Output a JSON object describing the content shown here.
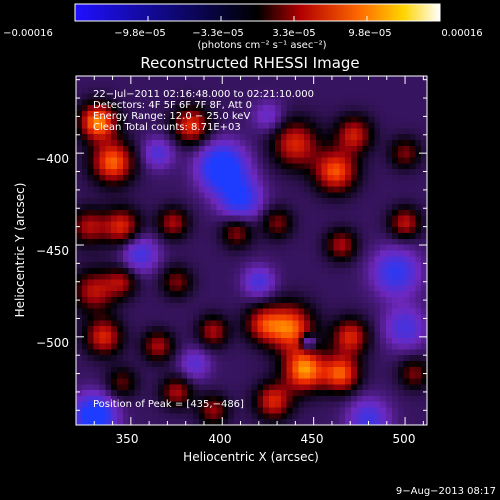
{
  "chart_data": {
    "type": "heatmap",
    "title": "Reconstructed RHESSI Image",
    "xlabel": "Heliocentric X (arcsec)",
    "ylabel": "Heliocentric Y (arcsec)",
    "xlim": [
      320,
      512
    ],
    "ylim": [
      -548,
      -358
    ],
    "xticks": [
      350,
      400,
      450,
      500
    ],
    "yticks": [
      -400,
      -450,
      -500
    ],
    "xtick_labels": [
      "350",
      "400",
      "450",
      "500"
    ],
    "ytick_labels": [
      "−400",
      "−450",
      "−500"
    ],
    "colorbar": {
      "range": [
        -0.00016,
        0.00016
      ],
      "tick_labels": [
        "−0.00016",
        "−9.8e−05",
        "−3.3e−05",
        "3.3e−05",
        "9.8e−05",
        "0.00016"
      ],
      "unit_label": "(photons cm⁻² s⁻¹ asec⁻²)"
    },
    "info_lines": [
      "22−Jul−2011 02:16:48.000 to 02:21:10.000",
      "Detectors: 4F 5F 6F 7F 8F, Att 0",
      "Energy Range: 12.0 − 25.0 keV",
      "Clean     Total counts: 8.71E+03"
    ],
    "peak_text": "Position of Peak = [435,−486]",
    "peak": [
      435,
      -486
    ],
    "footer": "9−Aug−2013 08:17",
    "blobs": [
      {
        "x": 332,
        "y": -383,
        "v": 1.0,
        "s": 7
      },
      {
        "x": 340,
        "y": -405,
        "v": 0.9,
        "s": 8
      },
      {
        "x": 327,
        "y": -440,
        "v": 0.55,
        "s": 7
      },
      {
        "x": 345,
        "y": -440,
        "v": 0.7,
        "s": 7
      },
      {
        "x": 383,
        "y": -385,
        "v": 0.75,
        "s": 7
      },
      {
        "x": 373,
        "y": -438,
        "v": 0.55,
        "s": 6
      },
      {
        "x": 408,
        "y": -443,
        "v": 0.5,
        "s": 6
      },
      {
        "x": 430,
        "y": -438,
        "v": 0.45,
        "s": 6
      },
      {
        "x": 440,
        "y": -395,
        "v": 0.7,
        "s": 9
      },
      {
        "x": 462,
        "y": -410,
        "v": 0.85,
        "s": 8
      },
      {
        "x": 472,
        "y": -390,
        "v": 0.65,
        "s": 7
      },
      {
        "x": 500,
        "y": -400,
        "v": 0.45,
        "s": 6
      },
      {
        "x": 500,
        "y": -438,
        "v": 0.6,
        "s": 6
      },
      {
        "x": 465,
        "y": -450,
        "v": 0.55,
        "s": 6
      },
      {
        "x": 330,
        "y": -475,
        "v": 0.6,
        "s": 8
      },
      {
        "x": 345,
        "y": -470,
        "v": 0.5,
        "s": 6
      },
      {
        "x": 375,
        "y": -470,
        "v": 0.45,
        "s": 6
      },
      {
        "x": 335,
        "y": -500,
        "v": 0.7,
        "s": 7
      },
      {
        "x": 365,
        "y": -505,
        "v": 0.55,
        "s": 6
      },
      {
        "x": 395,
        "y": -497,
        "v": 0.55,
        "s": 6
      },
      {
        "x": 422,
        "y": -493,
        "v": 0.6,
        "s": 7
      },
      {
        "x": 437,
        "y": -495,
        "v": 0.9,
        "s": 9
      },
      {
        "x": 445,
        "y": -518,
        "v": 1.0,
        "s": 8
      },
      {
        "x": 428,
        "y": -535,
        "v": 0.7,
        "s": 7
      },
      {
        "x": 465,
        "y": -520,
        "v": 0.85,
        "s": 7
      },
      {
        "x": 470,
        "y": -500,
        "v": 0.7,
        "s": 7
      },
      {
        "x": 505,
        "y": -520,
        "v": 0.45,
        "s": 6
      },
      {
        "x": 375,
        "y": -530,
        "v": 0.55,
        "s": 6
      },
      {
        "x": 395,
        "y": -540,
        "v": 0.5,
        "s": 6
      },
      {
        "x": 345,
        "y": -525,
        "v": 0.4,
        "s": 6
      },
      {
        "x": 400,
        "y": -408,
        "v": -1.0,
        "s": 9
      },
      {
        "x": 410,
        "y": -425,
        "v": -0.7,
        "s": 8
      },
      {
        "x": 330,
        "y": -543,
        "v": -0.95,
        "s": 8
      },
      {
        "x": 495,
        "y": -465,
        "v": -0.65,
        "s": 9
      },
      {
        "x": 480,
        "y": -545,
        "v": -0.55,
        "s": 8
      },
      {
        "x": 355,
        "y": -455,
        "v": -0.55,
        "s": 7
      },
      {
        "x": 420,
        "y": -470,
        "v": -0.5,
        "s": 6
      },
      {
        "x": 365,
        "y": -400,
        "v": -0.45,
        "s": 6
      },
      {
        "x": 447,
        "y": -503,
        "v": -0.75,
        "s": 3
      },
      {
        "x": 500,
        "y": -495,
        "v": -0.5,
        "s": 8
      },
      {
        "x": 385,
        "y": -515,
        "v": -0.4,
        "s": 6
      },
      {
        "x": 425,
        "y": -380,
        "v": -0.35,
        "s": 6
      }
    ]
  }
}
